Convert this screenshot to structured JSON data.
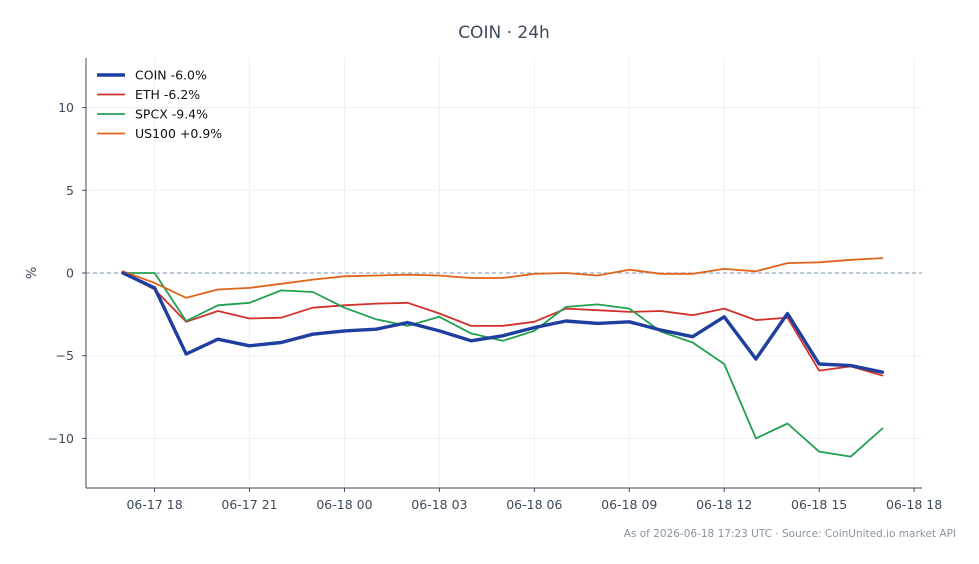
{
  "chart_data": {
    "type": "line",
    "title": "COIN · 24h",
    "xlabel": "",
    "ylabel": "%",
    "x": [
      "06-17 17:00",
      "06-17 18:00",
      "06-17 19:00",
      "06-17 20:00",
      "06-17 21:00",
      "06-17 22:00",
      "06-17 23:00",
      "06-18 00:00",
      "06-18 01:00",
      "06-18 02:00",
      "06-18 03:00",
      "06-18 04:00",
      "06-18 05:00",
      "06-18 06:00",
      "06-18 07:00",
      "06-18 08:00",
      "06-18 09:00",
      "06-18 10:00",
      "06-18 11:00",
      "06-18 12:00",
      "06-18 13:00",
      "06-18 14:00",
      "06-18 15:00",
      "06-18 16:00",
      "06-18 17:00"
    ],
    "x_ticks": [
      "06-17 18",
      "06-17 21",
      "06-18 00",
      "06-18 03",
      "06-18 06",
      "06-18 09",
      "06-18 12",
      "06-18 15",
      "06-18 18"
    ],
    "y_ticks": [
      -10,
      -5,
      0,
      5,
      10
    ],
    "ylim": [
      -13,
      13
    ],
    "xlim": [
      "06-17 15:50",
      "06-18 18:15"
    ],
    "grid": true,
    "legend_position": "top-left",
    "reference_line": 0,
    "series": [
      {
        "name": "COIN -6.0%",
        "color": "#1f3f9e",
        "values": [
          0,
          -0.9,
          -4.9,
          -4.0,
          -4.4,
          -4.2,
          -3.7,
          -3.5,
          -3.4,
          -3.0,
          -3.5,
          -4.1,
          -3.8,
          -3.3,
          -2.9,
          -3.05,
          -2.95,
          -3.45,
          -3.85,
          -2.65,
          -5.2,
          -2.45,
          -5.5,
          -5.6,
          -6.0
        ]
      },
      {
        "name": "ETH -6.2%",
        "color": "#d0312d",
        "values": [
          0,
          -1.0,
          -2.95,
          -2.3,
          -2.75,
          -2.7,
          -2.1,
          -1.95,
          -1.85,
          -1.8,
          -2.45,
          -3.2,
          -3.2,
          -2.95,
          -2.15,
          -2.25,
          -2.35,
          -2.3,
          -2.55,
          -2.15,
          -2.85,
          -2.7,
          -5.9,
          -5.65,
          -6.2
        ]
      },
      {
        "name": "SPCX -9.4%",
        "color": "#22a050",
        "values": [
          0,
          0,
          -2.9,
          -1.95,
          -1.8,
          -1.05,
          -1.15,
          -2.1,
          -2.8,
          -3.2,
          -2.65,
          -3.65,
          -4.1,
          -3.5,
          -2.05,
          -1.9,
          -2.15,
          -3.55,
          -4.2,
          -5.5,
          -10.0,
          -9.1,
          -10.8,
          -11.1,
          -9.4
        ]
      },
      {
        "name": "US100 +0.9%",
        "color": "#e0641c",
        "values": [
          0.1,
          -0.6,
          -1.5,
          -1.0,
          -0.9,
          -0.65,
          -0.4,
          -0.2,
          -0.15,
          -0.1,
          -0.15,
          -0.3,
          -0.3,
          -0.05,
          0,
          -0.15,
          0.2,
          -0.05,
          -0.05,
          0.25,
          0.1,
          0.6,
          0.65,
          0.8,
          0.9
        ]
      }
    ]
  },
  "footer": {
    "source_note": "As of 2026-06-18 17:23 UTC · Source: CoinUnited.io market API"
  }
}
